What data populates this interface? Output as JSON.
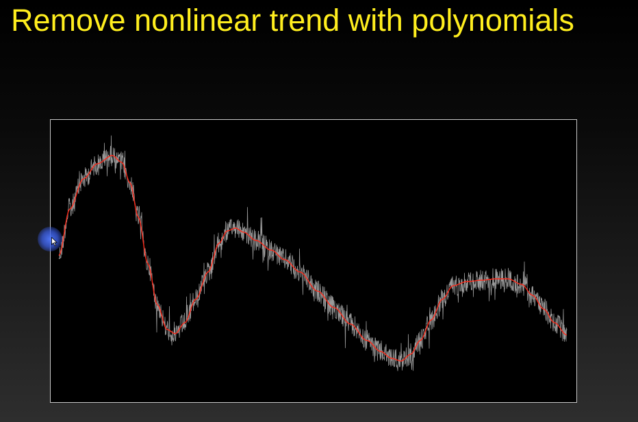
{
  "slide": {
    "title": "Remove nonlinear trend with polynomials",
    "title_color": "#ffee1e"
  },
  "plot": {
    "background": "#000000",
    "border_color": "#c8c8c8",
    "signal_color": "#9a9a9a",
    "trend_color": "#ff2a1a"
  },
  "cursor": {
    "highlight_color": "#4f73f2",
    "arrow_icon": "pointer-arrow"
  }
}
